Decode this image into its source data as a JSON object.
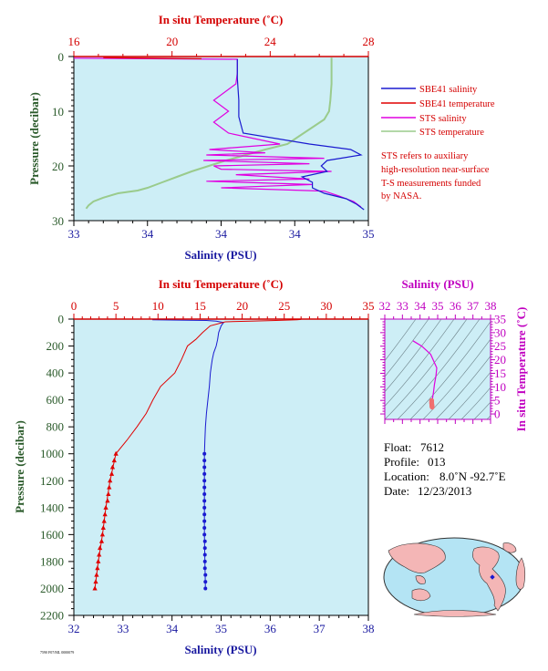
{
  "colors": {
    "panel_bg": "#cdeef6",
    "salinity": "#1a1ad0",
    "temperature": "#e00000",
    "sts_salinity": "#e000e0",
    "sts_temperature": "#9acb8c",
    "axis_red": "#d40000",
    "axis_green": "#2a5a2a",
    "axis_blue": "#1a1aa0",
    "axis_magenta": "#c000c0"
  },
  "top_panel": {
    "top_axis_title": "In situ Temperature (˚C)",
    "top_ticks": [
      "16",
      "20",
      "24",
      "28"
    ],
    "bottom_axis_title": "Salinity (PSU)",
    "bottom_ticks": [
      "33",
      "34",
      "34",
      "34",
      "35"
    ],
    "left_axis_title": "Pressure (decibar)",
    "left_ticks": [
      "0",
      "10",
      "20",
      "30"
    ],
    "legend": [
      {
        "label": "SBE41 salinity",
        "color": "#1a1ad0"
      },
      {
        "label": "SBE41 temperature",
        "color": "#e00000"
      },
      {
        "label": "STS salinity",
        "color": "#e000e0"
      },
      {
        "label": "STS temperature",
        "color": "#9acb8c"
      }
    ],
    "note": [
      "STS refers to auxiliary",
      "high-resolution near-surface",
      "T-S measurements funded",
      "by NASA."
    ]
  },
  "bottom_panel": {
    "top_axis_title": "In situ Temperature (˚C)",
    "top_ticks": [
      "0",
      "5",
      "10",
      "15",
      "20",
      "25",
      "30",
      "35"
    ],
    "bottom_axis_title": "Salinity (PSU)",
    "bottom_ticks": [
      "32",
      "33",
      "34",
      "35",
      "36",
      "37",
      "38"
    ],
    "left_axis_title": "Pressure (decibar)",
    "left_ticks": [
      "0",
      "200",
      "400",
      "600",
      "800",
      "1000",
      "1200",
      "1400",
      "1600",
      "1800",
      "2000",
      "2200"
    ]
  },
  "ts_panel": {
    "top_axis_title": "Salinity (PSU)",
    "top_ticks": [
      "32",
      "33",
      "34",
      "35",
      "36",
      "37",
      "38"
    ],
    "right_axis_title": "In situ Temperature (˚C)",
    "right_ticks": [
      "35",
      "30",
      "25",
      "20",
      "15",
      "10",
      "5",
      "0"
    ]
  },
  "info": {
    "float_label": "Float:",
    "float_value": "7612",
    "profile_label": "Profile:",
    "profile_value": "013",
    "location_label": "Location:",
    "location_value": "8.0˚N  -92.7˚E",
    "date_label": "Date:",
    "date_value": "12/23/2013"
  },
  "footer_id": "7590 F07/ML 0000079",
  "chart_data": [
    {
      "type": "line",
      "name_ref": "top_panel",
      "xlabel": "Salinity (PSU)",
      "x2label": "In situ Temperature (˚C)",
      "ylabel": "Pressure (decibar)",
      "xlim": [
        33.0,
        35.0
      ],
      "x2lim": [
        16,
        28
      ],
      "ylim": [
        0,
        30
      ],
      "y_inverted": true,
      "series": [
        {
          "name": "SBE41 salinity",
          "axis": "salinity",
          "points": [
            [
              34.11,
              0.5
            ],
            [
              34.11,
              4
            ],
            [
              34.12,
              8
            ],
            [
              34.12,
              11
            ],
            [
              34.15,
              14
            ],
            [
              34.6,
              16
            ],
            [
              34.88,
              17
            ],
            [
              34.95,
              18
            ],
            [
              34.72,
              19
            ],
            [
              34.68,
              20
            ],
            [
              34.72,
              21
            ],
            [
              34.55,
              22
            ],
            [
              34.62,
              23
            ],
            [
              34.62,
              24
            ],
            [
              34.7,
              25
            ],
            [
              34.85,
              26
            ],
            [
              34.92,
              27
            ],
            [
              34.97,
              28
            ]
          ]
        },
        {
          "name": "SBE41 temperature",
          "axis": "temperature",
          "points": [
            [
              17.2,
              0.2
            ],
            [
              21.2,
              0.4
            ]
          ]
        },
        {
          "name": "STS salinity",
          "axis": "salinity",
          "points": [
            [
              33.0,
              0.3
            ],
            [
              34.11,
              0.5
            ],
            [
              34.11,
              3
            ],
            [
              34.1,
              5
            ],
            [
              33.95,
              8
            ],
            [
              34.05,
              10
            ],
            [
              33.95,
              12
            ],
            [
              34.05,
              14
            ],
            [
              34.4,
              16
            ],
            [
              33.92,
              17
            ],
            [
              34.3,
              17.6
            ],
            [
              33.9,
              18
            ],
            [
              34.7,
              18.6
            ],
            [
              33.88,
              19
            ],
            [
              34.6,
              19.6
            ],
            [
              33.95,
              20
            ],
            [
              34.0,
              20.6
            ],
            [
              34.75,
              21
            ],
            [
              34.1,
              21.6
            ],
            [
              34.6,
              22.4
            ],
            [
              33.9,
              22.8
            ],
            [
              34.62,
              23.4
            ],
            [
              34.0,
              24
            ],
            [
              34.7,
              24.6
            ],
            [
              34.8,
              25.5
            ],
            [
              34.9,
              26.5
            ],
            [
              34.95,
              27.5
            ]
          ]
        },
        {
          "name": "STS temperature",
          "axis": "temperature",
          "points": [
            [
              26.5,
              0.2
            ],
            [
              26.5,
              2
            ],
            [
              26.5,
              5
            ],
            [
              26.45,
              8
            ],
            [
              26.4,
              10
            ],
            [
              26.2,
              11.5
            ],
            [
              25.7,
              13
            ],
            [
              25.2,
              14.5
            ],
            [
              24.7,
              16
            ],
            [
              23.8,
              17
            ],
            [
              23.0,
              18
            ],
            [
              22.2,
              19
            ],
            [
              21.5,
              20
            ],
            [
              20.8,
              21
            ],
            [
              20.2,
              22
            ],
            [
              19.6,
              23
            ],
            [
              19.0,
              24
            ],
            [
              18.6,
              24.5
            ],
            [
              17.8,
              25
            ],
            [
              17.2,
              25.8
            ],
            [
              16.8,
              26.5
            ],
            [
              16.6,
              27.2
            ],
            [
              16.5,
              27.8
            ]
          ]
        }
      ]
    },
    {
      "type": "line",
      "name_ref": "bottom_panel",
      "xlabel": "Salinity (PSU)",
      "x2label": "In situ Temperature (˚C)",
      "ylabel": "Pressure (decibar)",
      "xlim": [
        32,
        38
      ],
      "x2lim": [
        0,
        35
      ],
      "ylim": [
        0,
        2200
      ],
      "y_inverted": true,
      "series": [
        {
          "axis": "salinity",
          "points": [
            [
              33.6,
              5
            ],
            [
              34.7,
              10
            ],
            [
              34.9,
              15
            ],
            [
              35.05,
              25
            ],
            [
              35.0,
              50
            ],
            [
              34.95,
              100
            ],
            [
              34.93,
              150
            ],
            [
              34.9,
              200
            ],
            [
              34.85,
              250
            ],
            [
              34.82,
              300
            ],
            [
              34.8,
              350
            ],
            [
              34.78,
              400
            ],
            [
              34.76,
              500
            ],
            [
              34.73,
              600
            ],
            [
              34.7,
              700
            ],
            [
              34.68,
              800
            ],
            [
              34.67,
              900
            ],
            [
              34.66,
              1000
            ],
            [
              34.66,
              1200
            ],
            [
              34.66,
              1400
            ],
            [
              34.66,
              1600
            ],
            [
              34.67,
              1800
            ],
            [
              34.68,
              2000
            ]
          ],
          "markers": [
            [
              34.66,
              1000
            ],
            [
              34.66,
              1050
            ],
            [
              34.66,
              1100
            ],
            [
              34.66,
              1150
            ],
            [
              34.66,
              1200
            ],
            [
              34.66,
              1250
            ],
            [
              34.66,
              1300
            ],
            [
              34.66,
              1350
            ],
            [
              34.66,
              1400
            ],
            [
              34.66,
              1450
            ],
            [
              34.66,
              1500
            ],
            [
              34.66,
              1550
            ],
            [
              34.66,
              1600
            ],
            [
              34.67,
              1650
            ],
            [
              34.67,
              1700
            ],
            [
              34.67,
              1750
            ],
            [
              34.67,
              1800
            ],
            [
              34.67,
              1850
            ],
            [
              34.68,
              1900
            ],
            [
              34.68,
              1950
            ],
            [
              34.68,
              2000
            ]
          ]
        },
        {
          "axis": "temperature",
          "points": [
            [
              27,
              3
            ],
            [
              26.5,
              5
            ],
            [
              24,
              10
            ],
            [
              21,
              15
            ],
            [
              18,
              20
            ],
            [
              16.2,
              50
            ],
            [
              15.3,
              100
            ],
            [
              14.5,
              150
            ],
            [
              13.5,
              200
            ],
            [
              12.8,
              300
            ],
            [
              12.0,
              400
            ],
            [
              10.3,
              500
            ],
            [
              9.4,
              600
            ],
            [
              8.6,
              700
            ],
            [
              7.5,
              800
            ],
            [
              6.3,
              900
            ],
            [
              5.0,
              1000
            ],
            [
              4.3,
              1200
            ],
            [
              3.8,
              1400
            ],
            [
              3.4,
              1600
            ],
            [
              2.9,
              1800
            ],
            [
              2.5,
              2000
            ]
          ],
          "markers": [
            [
              5.0,
              1000
            ],
            [
              4.8,
              1050
            ],
            [
              4.6,
              1100
            ],
            [
              4.5,
              1150
            ],
            [
              4.3,
              1200
            ],
            [
              4.2,
              1250
            ],
            [
              4.1,
              1300
            ],
            [
              4.0,
              1350
            ],
            [
              3.8,
              1400
            ],
            [
              3.7,
              1450
            ],
            [
              3.6,
              1500
            ],
            [
              3.5,
              1550
            ],
            [
              3.4,
              1600
            ],
            [
              3.3,
              1650
            ],
            [
              3.1,
              1700
            ],
            [
              3.0,
              1750
            ],
            [
              2.9,
              1800
            ],
            [
              2.8,
              1850
            ],
            [
              2.7,
              1900
            ],
            [
              2.6,
              1950
            ],
            [
              2.5,
              2000
            ]
          ]
        }
      ]
    },
    {
      "type": "scatter",
      "name_ref": "ts_panel",
      "xlabel": "Salinity (PSU)",
      "ylabel": "In situ Temperature (˚C)",
      "xlim": [
        32,
        38
      ],
      "ylim": [
        -2,
        35
      ],
      "series": [
        {
          "line": [
            [
              33.6,
              27
            ],
            [
              34.1,
              25
            ],
            [
              34.6,
              22
            ],
            [
              34.95,
              17
            ],
            [
              34.9,
              14
            ],
            [
              34.82,
              11
            ],
            [
              34.76,
              8
            ],
            [
              34.7,
              5.5
            ],
            [
              34.68,
              4.5
            ]
          ],
          "dots": [
            [
              34.66,
              5.0
            ],
            [
              34.66,
              4.8
            ],
            [
              34.66,
              4.6
            ],
            [
              34.66,
              4.4
            ],
            [
              34.66,
              4.2
            ],
            [
              34.66,
              4.0
            ],
            [
              34.66,
              3.8
            ],
            [
              34.67,
              3.6
            ],
            [
              34.67,
              3.4
            ],
            [
              34.67,
              3.2
            ],
            [
              34.68,
              3.0
            ],
            [
              34.68,
              2.8
            ],
            [
              34.68,
              2.6
            ],
            [
              34.69,
              2.5
            ]
          ]
        }
      ]
    }
  ]
}
